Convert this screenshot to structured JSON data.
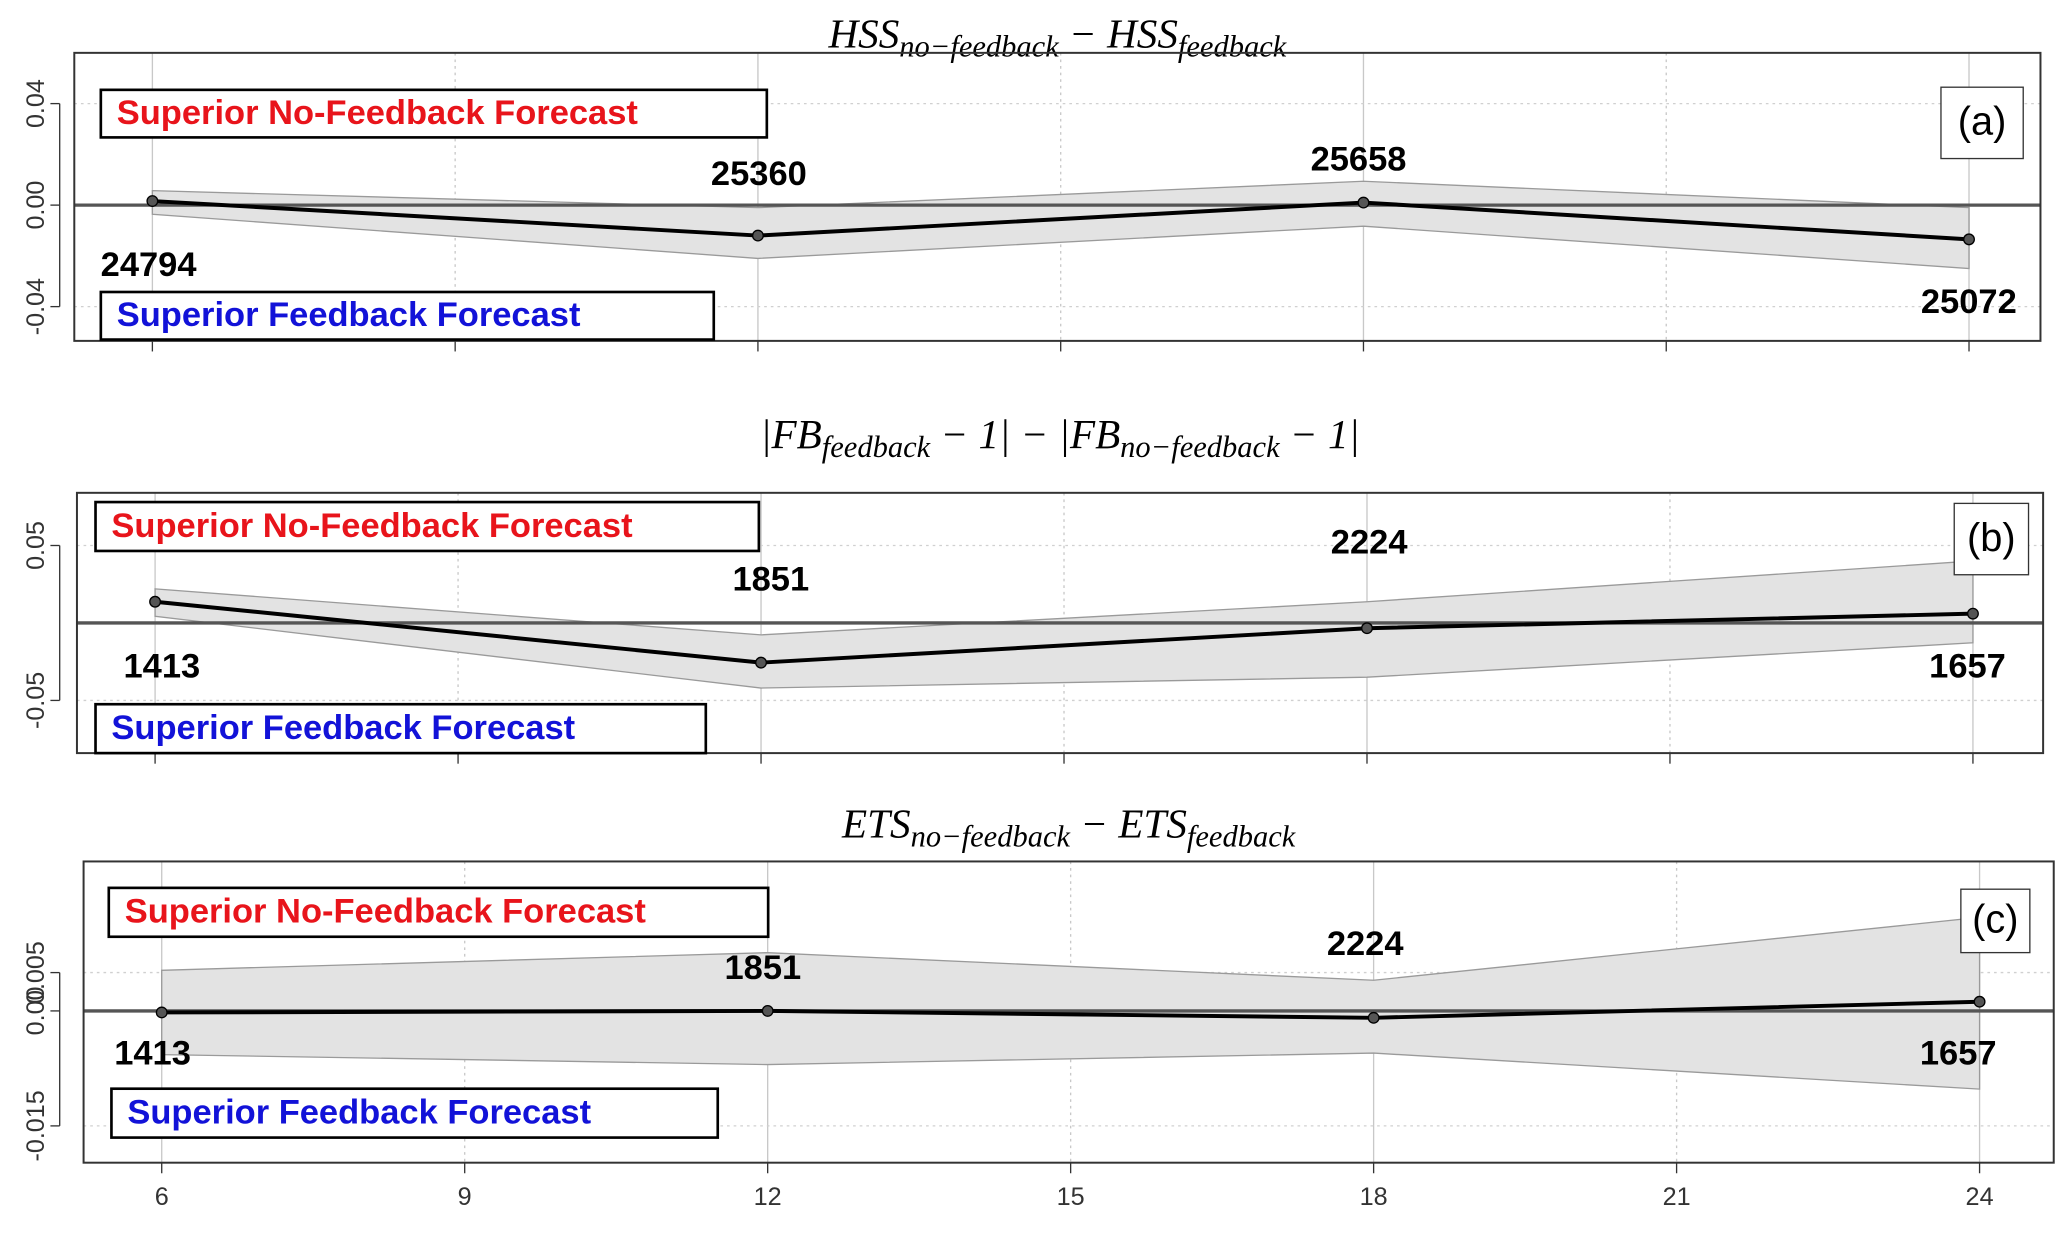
{
  "chart_data": [
    {
      "type": "line",
      "panel_label": "(a)",
      "title": [
        {
          "text": "HSS"
        },
        {
          "sub": "no−feedback"
        },
        {
          "text": " − HSS"
        },
        {
          "sub": "feedback"
        }
      ],
      "annotation_top": "Superior No-Feedback Forecast",
      "annotation_bottom": "Superior Feedback Forecast",
      "x": [
        6,
        12,
        18,
        24
      ],
      "values": [
        0.0016,
        -0.012,
        0.001,
        -0.0135
      ],
      "upper": [
        0.0057,
        -0.001,
        0.0094,
        -0.001
      ],
      "lower": [
        -0.0036,
        -0.021,
        -0.0083,
        -0.025
      ],
      "counts": [
        24794,
        25360,
        25658,
        25072
      ],
      "xlim": [
        5.2,
        24.8
      ],
      "ylim": [
        -0.0535,
        0.06
      ],
      "yticks": [
        {
          "value": -0.04,
          "label": "-0.04"
        },
        {
          "value": 0,
          "label": "0.00"
        },
        {
          "value": 0.04,
          "label": "0.04"
        }
      ],
      "color": "#000000",
      "band_color": "#e3e3e3"
    },
    {
      "type": "line",
      "panel_label": "(b)",
      "title": [
        {
          "text": "|FB"
        },
        {
          "sub": "feedback"
        },
        {
          "text": " − 1| − |FB"
        },
        {
          "sub": "no−feedback"
        },
        {
          "text": " − 1|"
        }
      ],
      "annotation_top": "Superior No-Feedback Forecast",
      "annotation_bottom": "Superior Feedback Forecast",
      "x": [
        6,
        12,
        18,
        24
      ],
      "values": [
        0.0137,
        -0.0256,
        -0.0034,
        0.006
      ],
      "upper": [
        0.022,
        -0.0077,
        0.0137,
        0.04
      ],
      "lower": [
        0.0043,
        -0.042,
        -0.035,
        -0.0128
      ],
      "counts": [
        1413,
        1851,
        2224,
        1657
      ],
      "xlim": [
        5.2,
        24.8
      ],
      "ylim": [
        -0.084,
        0.084
      ],
      "yticks": [
        {
          "value": -0.05,
          "label": "-0.05"
        },
        {
          "value": 0.05,
          "label": "0.05"
        }
      ],
      "color": "#000000",
      "band_color": "#e3e3e3"
    },
    {
      "type": "line",
      "panel_label": "(c)",
      "title": [
        {
          "text": "ETS"
        },
        {
          "sub": "no−feedback"
        },
        {
          "text": " − ETS"
        },
        {
          "sub": "feedback"
        }
      ],
      "annotation_top": "Superior No-Feedback Forecast",
      "annotation_bottom": "Superior Feedback Forecast",
      "x": [
        6,
        12,
        18,
        24
      ],
      "values": [
        -0.0002,
        0,
        -0.0009,
        0.0012
      ],
      "upper": [
        0.0053,
        0.0076,
        0.004,
        0.0122
      ],
      "lower": [
        -0.0057,
        -0.007,
        -0.0055,
        -0.0102
      ],
      "counts": [
        1413,
        1851,
        2224,
        1657
      ],
      "xlim": [
        5.2,
        24.8
      ],
      "ylim": [
        -0.0198,
        0.0195
      ],
      "xticks": [
        6,
        9,
        12,
        15,
        18,
        21,
        24
      ],
      "yticks": [
        {
          "value": -0.015,
          "label": "-0.015"
        },
        {
          "value": 0,
          "label": "0.00"
        },
        {
          "value": 0.005,
          "label": "0.005"
        }
      ],
      "color": "#000000",
      "band_color": "#e3e3e3"
    }
  ]
}
